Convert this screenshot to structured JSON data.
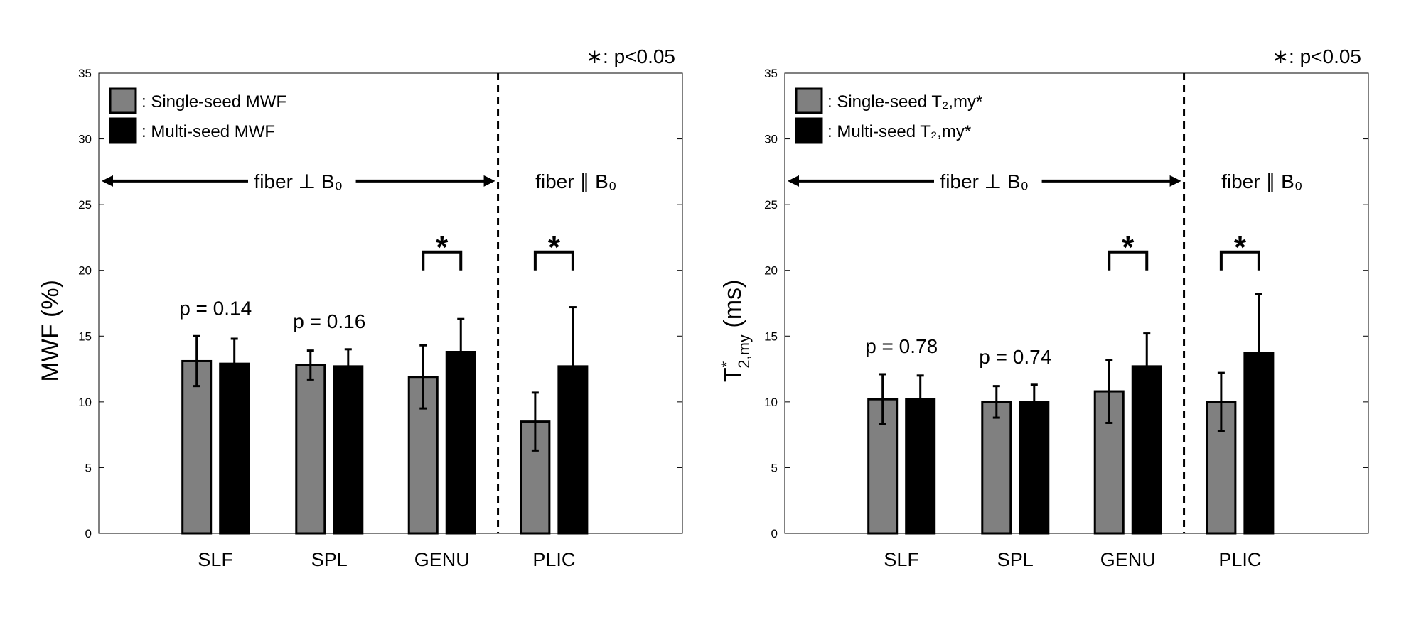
{
  "colors": {
    "single_seed": "#808080",
    "multi_seed": "#000000",
    "axis": "#000000"
  },
  "chart_data": [
    {
      "type": "bar",
      "ylabel": {
        "main": "MWF (%)"
      },
      "ylim": [
        0,
        35
      ],
      "yticks": [
        "0",
        "5",
        "10",
        "15",
        "20",
        "25",
        "30",
        "35"
      ],
      "categories": [
        "SLF",
        "SPL",
        "GENU",
        "PLIC"
      ],
      "series": [
        {
          "name": ": Single-seed MWF",
          "color": "#808080",
          "values": [
            13.1,
            12.8,
            11.9,
            8.5
          ],
          "errors": [
            1.9,
            1.1,
            2.4,
            2.2
          ]
        },
        {
          "name": ": Multi-seed MWF",
          "color": "#000000",
          "values": [
            12.9,
            12.7,
            13.8,
            12.7
          ],
          "errors": [
            1.9,
            1.3,
            2.5,
            4.5
          ]
        }
      ],
      "p_values": [
        "p = 0.14",
        "p = 0.16"
      ],
      "significance_note": "∗: p<0.05",
      "significant_categories": [
        "GENU",
        "PLIC"
      ],
      "star": "*",
      "divider_between": [
        "GENU",
        "PLIC"
      ],
      "region_perp": "fiber ⊥ B₀",
      "region_para": "fiber ∥ B₀",
      "legend_placement": "top-left"
    },
    {
      "type": "bar",
      "ylabel": {
        "main": "T",
        "sup": "*",
        "sub": "2,my",
        "unit": " (ms)"
      },
      "ylim": [
        0,
        35
      ],
      "yticks": [
        "0",
        "5",
        "10",
        "15",
        "20",
        "25",
        "30",
        "35"
      ],
      "categories": [
        "SLF",
        "SPL",
        "GENU",
        "PLIC"
      ],
      "series": [
        {
          "name": ": Single-seed T₂,my*",
          "color": "#808080",
          "values": [
            10.2,
            10.0,
            10.8,
            10.0
          ],
          "errors": [
            1.9,
            1.2,
            2.4,
            2.2
          ]
        },
        {
          "name": ": Multi-seed T₂,my*",
          "color": "#000000",
          "values": [
            10.2,
            10.0,
            12.7,
            13.7
          ],
          "errors": [
            1.8,
            1.3,
            2.5,
            4.5
          ]
        }
      ],
      "p_values": [
        "p = 0.78",
        "p = 0.74"
      ],
      "significance_note": "∗: p<0.05",
      "significant_categories": [
        "GENU",
        "PLIC"
      ],
      "star": "*",
      "divider_between": [
        "GENU",
        "PLIC"
      ],
      "region_perp": "fiber ⊥ B₀",
      "region_para": "fiber ∥ B₀",
      "legend_placement": "top-left"
    }
  ]
}
